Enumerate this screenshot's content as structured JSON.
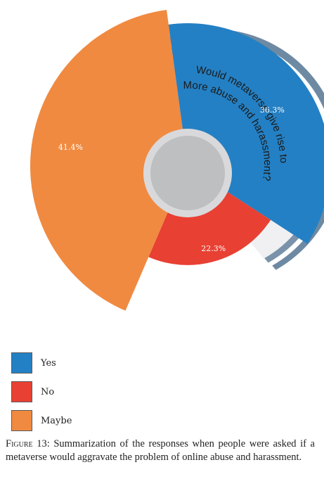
{
  "chart_data": {
    "type": "pie",
    "categories": [
      "Yes",
      "No",
      "Maybe"
    ],
    "values": [
      36.3,
      22.3,
      41.4
    ],
    "labels": [
      "36.3%",
      "22.3%",
      "41.4%"
    ],
    "colors": [
      "#2480c4",
      "#e84033",
      "#f08a40"
    ],
    "center_text": "Would metaverse give rise to More abuse and harassment?",
    "legend_position": "bottom-left"
  },
  "legend": {
    "items": [
      {
        "label": "Yes",
        "color": "#2480c4"
      },
      {
        "label": "No",
        "color": "#e84033"
      },
      {
        "label": "Maybe",
        "color": "#f08a40"
      }
    ]
  },
  "caption": {
    "figure_label": "Figure 13:",
    "text": "Summarization of the responses when people were asked if a metaverse would aggravate the problem of online abuse and harassment."
  }
}
